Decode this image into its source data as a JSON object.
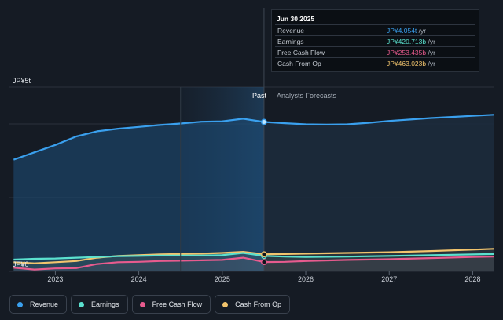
{
  "tooltip": {
    "date": "Jun 30 2025",
    "rows": [
      {
        "label": "Revenue",
        "value": "JP¥4.054t",
        "unit": " /yr",
        "color": "#3aa0ee"
      },
      {
        "label": "Earnings",
        "value": "JP¥420.713b",
        "unit": " /yr",
        "color": "#5be1cf"
      },
      {
        "label": "Free Cash Flow",
        "value": "JP¥253.435b",
        "unit": " /yr",
        "color": "#e85b8e"
      },
      {
        "label": "Cash From Op",
        "value": "JP¥463.023b",
        "unit": " /yr",
        "color": "#f2c46d"
      }
    ]
  },
  "legend": [
    {
      "label": "Revenue",
      "color": "#3aa0ee"
    },
    {
      "label": "Earnings",
      "color": "#5be1cf"
    },
    {
      "label": "Free Cash Flow",
      "color": "#e85b8e"
    },
    {
      "label": "Cash From Op",
      "color": "#f2c46d"
    }
  ],
  "chart_data": {
    "type": "line",
    "y_top_label": "JP¥5t",
    "y_bottom_label": "JP¥0",
    "past_label": "Past",
    "forecast_label": "Analysts Forecasts",
    "x_ticks": [
      "2023",
      "2024",
      "2025",
      "2026",
      "2027",
      "2028"
    ],
    "x_tick_values": [
      2023.0,
      2024.0,
      2025.0,
      2026.0,
      2027.0,
      2028.0
    ],
    "x_range": [
      2022.45,
      2028.25
    ],
    "ylim": [
      0,
      5.0
    ],
    "y_unit": "JP¥ trillion",
    "past_start": 2024.5,
    "split": 2025.5,
    "grid": true,
    "legend_position": "bottom",
    "series": [
      {
        "name": "Revenue",
        "color": "#3aa0ee",
        "past": [
          [
            2022.5,
            3.03
          ],
          [
            2022.75,
            3.23
          ],
          [
            2023.0,
            3.43
          ],
          [
            2023.25,
            3.66
          ],
          [
            2023.5,
            3.8
          ],
          [
            2023.75,
            3.87
          ],
          [
            2024.0,
            3.92
          ],
          [
            2024.25,
            3.97
          ],
          [
            2024.5,
            4.01
          ],
          [
            2024.75,
            4.06
          ],
          [
            2025.0,
            4.07
          ],
          [
            2025.25,
            4.14
          ],
          [
            2025.5,
            4.054
          ]
        ],
        "forecast": [
          [
            2025.5,
            4.054
          ],
          [
            2025.75,
            4.02
          ],
          [
            2026.0,
            3.99
          ],
          [
            2026.25,
            3.98
          ],
          [
            2026.5,
            3.99
          ],
          [
            2026.75,
            4.03
          ],
          [
            2027.0,
            4.08
          ],
          [
            2027.25,
            4.12
          ],
          [
            2027.5,
            4.16
          ],
          [
            2027.75,
            4.19
          ],
          [
            2028.0,
            4.22
          ],
          [
            2028.25,
            4.25
          ]
        ]
      },
      {
        "name": "Earnings",
        "color": "#5be1cf",
        "past": [
          [
            2022.5,
            0.32
          ],
          [
            2022.75,
            0.34
          ],
          [
            2023.0,
            0.35
          ],
          [
            2023.25,
            0.37
          ],
          [
            2023.5,
            0.39
          ],
          [
            2023.75,
            0.41
          ],
          [
            2024.0,
            0.42
          ],
          [
            2024.25,
            0.43
          ],
          [
            2024.5,
            0.43
          ],
          [
            2024.75,
            0.43
          ],
          [
            2025.0,
            0.44
          ],
          [
            2025.25,
            0.5
          ],
          [
            2025.5,
            0.42
          ]
        ],
        "forecast": [
          [
            2025.5,
            0.42
          ],
          [
            2025.75,
            0.4
          ],
          [
            2026.0,
            0.39
          ],
          [
            2026.5,
            0.4
          ],
          [
            2027.0,
            0.42
          ],
          [
            2027.5,
            0.44
          ],
          [
            2028.0,
            0.46
          ],
          [
            2028.25,
            0.47
          ]
        ]
      },
      {
        "name": "Free Cash Flow",
        "color": "#e85b8e",
        "past": [
          [
            2022.5,
            0.1
          ],
          [
            2022.75,
            0.05
          ],
          [
            2023.0,
            0.08
          ],
          [
            2023.25,
            0.09
          ],
          [
            2023.5,
            0.2
          ],
          [
            2023.75,
            0.25
          ],
          [
            2024.0,
            0.26
          ],
          [
            2024.25,
            0.28
          ],
          [
            2024.5,
            0.29
          ],
          [
            2024.75,
            0.3
          ],
          [
            2025.0,
            0.31
          ],
          [
            2025.25,
            0.37
          ],
          [
            2025.5,
            0.253
          ]
        ],
        "forecast": [
          [
            2025.5,
            0.253
          ],
          [
            2025.75,
            0.26
          ],
          [
            2026.0,
            0.28
          ],
          [
            2026.5,
            0.31
          ],
          [
            2027.0,
            0.33
          ],
          [
            2027.5,
            0.36
          ],
          [
            2028.0,
            0.39
          ],
          [
            2028.25,
            0.4
          ]
        ]
      },
      {
        "name": "Cash From Op",
        "color": "#f2c46d",
        "past": [
          [
            2022.5,
            0.25
          ],
          [
            2022.75,
            0.22
          ],
          [
            2023.0,
            0.25
          ],
          [
            2023.25,
            0.28
          ],
          [
            2023.5,
            0.37
          ],
          [
            2023.75,
            0.42
          ],
          [
            2024.0,
            0.44
          ],
          [
            2024.25,
            0.46
          ],
          [
            2024.5,
            0.47
          ],
          [
            2024.75,
            0.48
          ],
          [
            2025.0,
            0.5
          ],
          [
            2025.25,
            0.53
          ],
          [
            2025.5,
            0.463
          ]
        ],
        "forecast": [
          [
            2025.5,
            0.463
          ],
          [
            2025.75,
            0.47
          ],
          [
            2026.0,
            0.48
          ],
          [
            2026.5,
            0.5
          ],
          [
            2027.0,
            0.52
          ],
          [
            2027.5,
            0.55
          ],
          [
            2028.0,
            0.59
          ],
          [
            2028.25,
            0.61
          ]
        ]
      }
    ]
  }
}
